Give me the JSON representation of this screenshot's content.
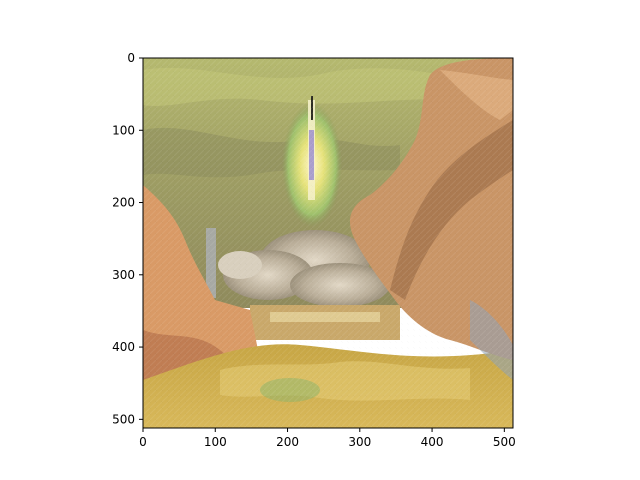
{
  "chart_data": {
    "type": "image",
    "description_source": "matplotlib imshow of a stylized painting (rocket launch with smoke plume, palm fronds and golden foliage)",
    "xlim": [
      0,
      512
    ],
    "ylim": [
      512,
      0
    ],
    "xticks": [
      0,
      100,
      200,
      300,
      400,
      500
    ],
    "yticks": [
      0,
      100,
      200,
      300,
      400,
      500
    ],
    "xtick_labels": [
      "0",
      "100",
      "200",
      "300",
      "400",
      "500"
    ],
    "ytick_labels": [
      "0",
      "100",
      "200",
      "300",
      "400",
      "500"
    ],
    "title": "",
    "xlabel": "",
    "ylabel": "",
    "colors": {
      "sky": "#a8a866",
      "smoke": "#c9bfae",
      "flame": "#f4e6a0",
      "foliage": "#d99a66",
      "grass": "#d4b042",
      "palm": "#c99566",
      "water": "#c9a86a"
    }
  }
}
